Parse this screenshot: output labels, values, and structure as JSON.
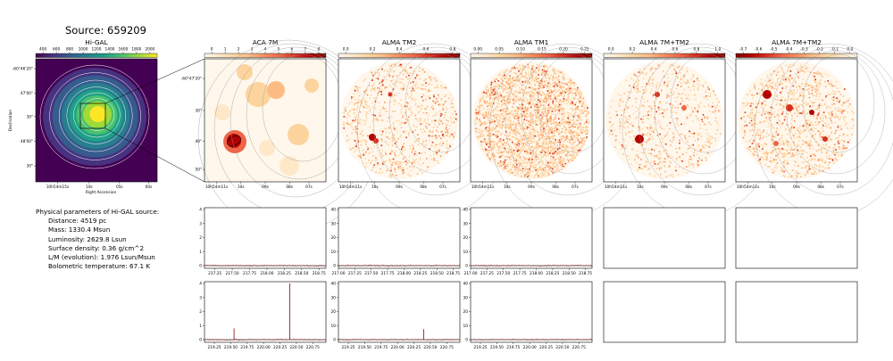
{
  "source_title": "Source: 659209",
  "params": {
    "heading": "Physical parameters of Hi-GAL source:",
    "lines": [
      "Distance: 4519 pc",
      "Mass: 1330.4 Msun",
      "Luminosity: 2629.8 Lsun",
      "Surface density: 0.36 g/cm^2",
      "L/M (evolution): 1.976 Lsun/Msun",
      "Bolometric temperature: 67.1 K"
    ]
  },
  "colors": {
    "viridis": [
      "#440154",
      "#46327e",
      "#365c8d",
      "#277f8e",
      "#1fa187",
      "#4ac16d",
      "#a0da39",
      "#fde725"
    ],
    "orrd": [
      "#fff7ec",
      "#fee8c8",
      "#fdd49e",
      "#fdbb84",
      "#fc8d59",
      "#ef6548",
      "#d7301f",
      "#b30000",
      "#7f0000"
    ],
    "spectrum_line": "#8b0000",
    "zero_line": "#000000"
  },
  "chart_data": [
    {
      "type": "heatmap",
      "title": "Hi-GAL",
      "colorbar_ticks": [
        "400",
        "600",
        "800",
        "1000",
        "1200",
        "1400",
        "1600",
        "1800",
        "2000"
      ],
      "ylabel": "Declination",
      "xlabel": "Right Ascension",
      "y_ticks": [
        "-60°46'20\"",
        "47'00\"",
        "30\"",
        "48'00\"",
        "30\""
      ],
      "x_ticks": [
        "10h54m15s",
        "10s",
        "05s",
        "00s"
      ],
      "colormap": "viridis"
    },
    {
      "type": "heatmap",
      "title": "ACA 7M",
      "colorbar_ticks": [
        "0",
        "1",
        "2",
        "3",
        "4",
        "5",
        "6",
        "7",
        "8"
      ],
      "y_ticks": [
        "-60°47'20\"",
        "30\"",
        "40\"",
        "50\""
      ],
      "x_ticks": [
        "10h54m11s",
        "10s",
        "09s",
        "08s",
        "07s"
      ],
      "colormap": "orrd"
    },
    {
      "type": "heatmap",
      "title": "ALMA TM2",
      "colorbar_ticks": [
        "0.0",
        "0.2",
        "0.4",
        "0.6",
        "0.8"
      ],
      "x_ticks": [
        "10h54m11s",
        "10s",
        "09s",
        "08s",
        "07s"
      ],
      "colormap": "orrd"
    },
    {
      "type": "heatmap",
      "title": "ALMA TM1",
      "colorbar_ticks": [
        "0.00",
        "0.05",
        "0.10",
        "0.15",
        "0.20",
        "0.25"
      ],
      "x_ticks": [
        "10h54m11s",
        "10s",
        "09s",
        "08s",
        "07s"
      ],
      "colormap": "orrd"
    },
    {
      "type": "heatmap",
      "title": "ALMA 7M+TM2",
      "colorbar_ticks": [
        "0.0",
        "0.2",
        "0.4",
        "0.6",
        "0.8",
        "1.0"
      ],
      "x_ticks": [
        "10h54m11s",
        "10s",
        "09s",
        "08s",
        "07s"
      ],
      "colormap": "orrd"
    },
    {
      "type": "heatmap",
      "title": "ALMA 7M+TM2",
      "colorbar_ticks": [
        "-0.7",
        "-0.6",
        "-0.5",
        "-0.4",
        "-0.3",
        "-0.2",
        "-0.1",
        "0.0"
      ],
      "x_ticks": [
        "10h54m11s",
        "10s",
        "09s",
        "08s",
        "07s"
      ],
      "colormap": "orrd"
    },
    {
      "type": "line",
      "y_ticks": [
        "0",
        "1",
        "2",
        "3",
        "4"
      ],
      "ylim": [
        0,
        4
      ],
      "x_ticks": [
        "217.25",
        "217.50",
        "217.75",
        "218.00",
        "218.25",
        "218.50",
        "218.75"
      ],
      "xlim": [
        217.1,
        218.85
      ],
      "series": [
        {
          "spikes": []
        }
      ]
    },
    {
      "type": "line",
      "y_ticks": [
        "0",
        "10",
        "20",
        "30",
        "40"
      ],
      "ylim": [
        0,
        40
      ],
      "x_ticks": [
        "217.00",
        "217.25",
        "217.50",
        "217.75",
        "218.00",
        "218.25",
        "218.50",
        "218.75"
      ],
      "xlim": [
        217.0,
        218.85
      ],
      "series": [
        {
          "spikes": []
        }
      ]
    },
    {
      "type": "line",
      "y_ticks": [
        "0",
        "10",
        "20",
        "30",
        "40"
      ],
      "ylim": [
        0,
        40
      ],
      "x_ticks": [
        "217.00",
        "217.25",
        "217.50",
        "217.75",
        "218.00",
        "218.25",
        "218.50",
        "218.75"
      ],
      "xlim": [
        217.0,
        218.85
      ],
      "series": [
        {
          "spikes": []
        }
      ]
    },
    {
      "type": "line",
      "y_ticks": [
        "0",
        "1",
        "2",
        "3",
        "4"
      ],
      "ylim": [
        0,
        4
      ],
      "x_ticks": [
        "219.25",
        "219.50",
        "219.75",
        "220.00",
        "220.25",
        "220.50",
        "220.75"
      ],
      "xlim": [
        219.1,
        220.95
      ],
      "series": [
        {
          "spikes": [
            {
              "x": 219.55,
              "y": 0.8
            },
            {
              "x": 220.4,
              "y": 4.0
            }
          ]
        }
      ]
    },
    {
      "type": "line",
      "y_ticks": [
        "0",
        "10",
        "20",
        "30",
        "40"
      ],
      "ylim": [
        0,
        40
      ],
      "x_ticks": [
        "219.25",
        "219.50",
        "219.75",
        "220.00",
        "220.25",
        "220.50",
        "220.75"
      ],
      "xlim": [
        219.1,
        220.95
      ],
      "series": [
        {
          "spikes": [
            {
              "x": 220.4,
              "y": 7.5
            }
          ]
        }
      ]
    },
    {
      "type": "line",
      "y_ticks": [
        "0",
        "10",
        "20",
        "30",
        "40"
      ],
      "ylim": [
        0,
        40
      ],
      "x_ticks": [
        "219.25",
        "219.50",
        "219.75",
        "220.00",
        "220.25",
        "220.50",
        "220.75"
      ],
      "xlim": [
        219.1,
        220.95
      ],
      "series": [
        {
          "spikes": []
        }
      ]
    }
  ]
}
